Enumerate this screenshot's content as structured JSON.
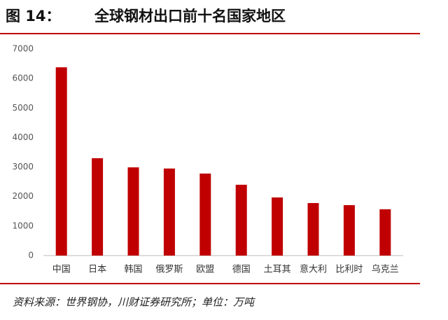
{
  "chart_data": {
    "type": "bar",
    "title_label": "图 14：",
    "title": "全球钢材出口前十名国家地区",
    "source": "资料来源：世界钢协，川财证券研究所；单位：万吨",
    "categories": [
      "中国",
      "日本",
      "韩国",
      "俄罗斯",
      "欧盟",
      "德国",
      "土耳其",
      "意大利",
      "比利时",
      "乌克兰"
    ],
    "values": [
      6380,
      3300,
      2990,
      2950,
      2780,
      2400,
      1970,
      1780,
      1710,
      1570
    ],
    "color": "#c00000",
    "ylim": [
      0,
      7000
    ],
    "yticks": [
      0,
      1000,
      2000,
      3000,
      4000,
      5000,
      6000,
      7000
    ],
    "grid": false
  }
}
